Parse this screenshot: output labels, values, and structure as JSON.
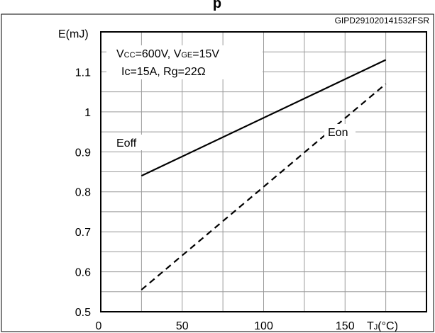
{
  "figure": {
    "title_partial": "p",
    "code": "GIPD291020141532FSR"
  },
  "chart_data": {
    "type": "line",
    "title": "",
    "xlabel": "TJ(°C)",
    "xlabel_main": "T",
    "xlabel_sub": "J",
    "xlabel_unit": "(°C)",
    "ylabel": "E(mJ)",
    "xlim": [
      0,
      200
    ],
    "ylim": [
      0.5,
      1.2
    ],
    "grid": true,
    "x_ticks": [
      0,
      50,
      100,
      150
    ],
    "y_ticks": [
      0.5,
      0.6,
      0.7,
      0.8,
      0.9,
      1.0,
      1.1
    ],
    "y_tick_labels": [
      "0.5",
      "0.6",
      "0.7",
      "0.8",
      "0.9",
      "1",
      "1.1"
    ],
    "annotation": {
      "line1": {
        "v1": "V",
        "s1": "CC",
        "t1": "=600V, V",
        "s2": "GE",
        "t2": "=15V"
      },
      "line2": "Ic=15A, Rg=22Ω"
    },
    "series": [
      {
        "name": "Eoff",
        "style": "solid",
        "x": [
          25,
          175
        ],
        "y": [
          0.84,
          1.13
        ]
      },
      {
        "name": "Eon",
        "style": "dashed",
        "x": [
          25,
          175
        ],
        "y": [
          0.555,
          1.07
        ]
      }
    ]
  }
}
